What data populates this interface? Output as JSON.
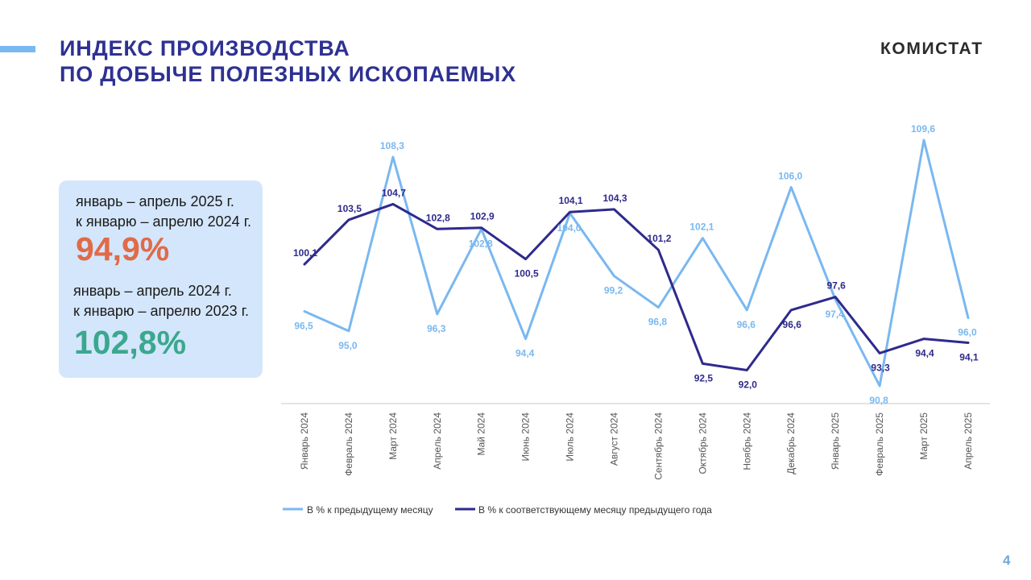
{
  "header": {
    "title_line1": "ИНДЕКС ПРОИЗВОДСТВА",
    "title_line2": "ПО ДОБЫЧЕ ПОЛЕЗНЫХ ИСКОПАЕМЫХ",
    "logo": "КОМИСТАТ"
  },
  "summary": {
    "period1_line1": "январь – апрель 2025 г.",
    "period1_line2": "к январю – апрелю 2024 г.",
    "period1_value": "94,9%",
    "period2_line1": "январь – апрель 2024 г.",
    "period2_line2": "к январю – апрелю 2023 г.",
    "period2_value": "102,8%"
  },
  "colors": {
    "title": "#2e3192",
    "series_prev_month": "#7ab8f0",
    "series_prev_year": "#2e2a8c",
    "value_2025": "#e06b48",
    "value_2024": "#3aa88e",
    "box_bg": "#d4e6fb"
  },
  "chart_data": {
    "type": "line",
    "title": "",
    "xlabel": "",
    "ylabel": "",
    "grid": false,
    "legend_position": "bottom",
    "categories": [
      "Январь 2024",
      "Февраль 2024",
      "Март 2024",
      "Апрель 2024",
      "Май 2024",
      "Июнь 2024",
      "Июль 2024",
      "Август 2024",
      "Сентябрь 2024",
      "Октябрь 2024",
      "Ноябрь 2024",
      "Декабрь 2024",
      "Январь  2025",
      "Февраль 2025",
      "Март 2025",
      "Апрель 2025"
    ],
    "series": [
      {
        "name": "В % к предыдущему месяцу",
        "values": [
          96.5,
          95.0,
          108.3,
          96.3,
          102.8,
          94.4,
          104.0,
          99.2,
          96.8,
          102.1,
          96.6,
          106.0,
          97.4,
          90.8,
          109.6,
          96.0
        ],
        "labels": [
          "96,5",
          "95,0",
          "108,3",
          "96,3",
          "102,8",
          "94,4",
          "104,0",
          "99,2",
          "96,8",
          "102,1",
          "96,6",
          "106,0",
          "97,4",
          "90,8",
          "109,6",
          "96,0"
        ],
        "label_position": [
          "below",
          "below",
          "above",
          "below",
          "below",
          "below",
          "below",
          "below",
          "below",
          "above",
          "below",
          "above",
          "below",
          "below",
          "above",
          "below"
        ]
      },
      {
        "name": "В % к соответствующему  месяцу предыдущего года",
        "values": [
          100.1,
          103.5,
          104.7,
          102.8,
          102.9,
          100.5,
          104.1,
          104.3,
          101.2,
          92.5,
          92.0,
          96.6,
          97.6,
          93.3,
          94.4,
          94.1
        ],
        "labels": [
          "100,1",
          "103,5",
          "104,7",
          "102,8",
          "102,9",
          "100,5",
          "104,1",
          "104,3",
          "101,2",
          "92,5",
          "92,0",
          "96,6",
          "97,6",
          "93,3",
          "94,4",
          "94,1"
        ],
        "label_position": [
          "above",
          "above",
          "above",
          "above",
          "above",
          "below",
          "above",
          "above",
          "above",
          "below",
          "below",
          "below",
          "above",
          "below",
          "below",
          "below"
        ]
      }
    ]
  },
  "page_number": "4"
}
